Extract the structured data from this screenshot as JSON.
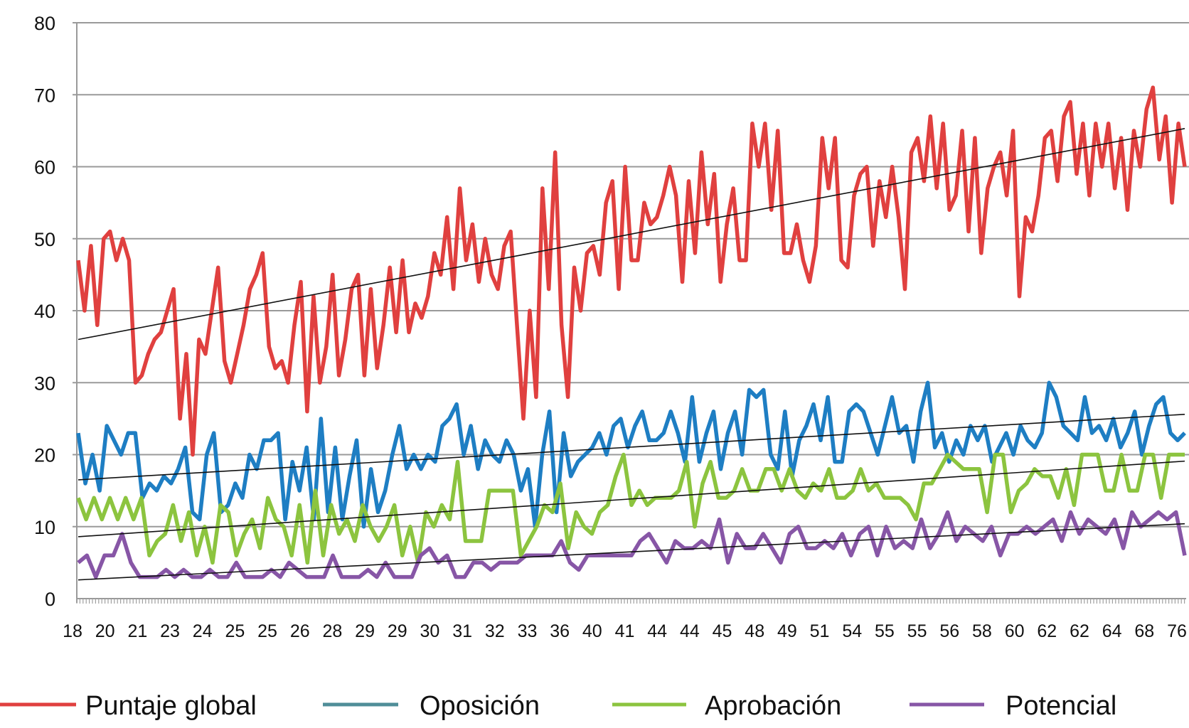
{
  "chart_data": {
    "type": "line",
    "title": "",
    "xlabel": "",
    "ylabel": "",
    "ylim": [
      0,
      80
    ],
    "yticks": [
      0,
      10,
      20,
      30,
      40,
      50,
      60,
      70,
      80
    ],
    "grid": true,
    "legend_position": "bottom",
    "x_tick_labels": [
      "18",
      "20",
      "21",
      "23",
      "24",
      "25",
      "25",
      "26",
      "28",
      "29",
      "29",
      "30",
      "31",
      "32",
      "33",
      "36",
      "40",
      "41",
      "44",
      "44",
      "45",
      "48",
      "49",
      "51",
      "54",
      "55",
      "55",
      "56",
      "58",
      "60",
      "62",
      "62",
      "64",
      "68",
      "76"
    ],
    "series": [
      {
        "name": "Puntaje global",
        "color": "#E0403F",
        "trend": [
          36,
          65.3
        ],
        "values": [
          47,
          40,
          49,
          38,
          50,
          51,
          47,
          50,
          47,
          30,
          31,
          34,
          36,
          37,
          40,
          43,
          25,
          34,
          20,
          36,
          34,
          40,
          46,
          33,
          30,
          34,
          38,
          43,
          45,
          48,
          35,
          32,
          33,
          30,
          38,
          44,
          26,
          42,
          30,
          35,
          45,
          31,
          36,
          43,
          45,
          31,
          43,
          32,
          38,
          46,
          37,
          47,
          37,
          41,
          39,
          42,
          48,
          45,
          53,
          43,
          57,
          47,
          52,
          44,
          50,
          45,
          43,
          49,
          51,
          38,
          25,
          40,
          28,
          57,
          43,
          62,
          38,
          28,
          46,
          40,
          48,
          49,
          45,
          55,
          58,
          43,
          60,
          47,
          47,
          55,
          52,
          53,
          56,
          60,
          56,
          44,
          58,
          48,
          62,
          52,
          59,
          44,
          52,
          57,
          47,
          47,
          66,
          60,
          66,
          54,
          65,
          48,
          48,
          52,
          47,
          44,
          49,
          64,
          57,
          64,
          47,
          46,
          56,
          59,
          60,
          49,
          58,
          53,
          60,
          53,
          43,
          62,
          64,
          58,
          67,
          57,
          66,
          54,
          56,
          65,
          51,
          64,
          48,
          57,
          60,
          62,
          56,
          65,
          42,
          53,
          51,
          56,
          64,
          65,
          58,
          67,
          69,
          59,
          66,
          56,
          66,
          60,
          66,
          57,
          64,
          54,
          65,
          60,
          68,
          71,
          61,
          67,
          55,
          66,
          60
        ]
      },
      {
        "name": "Oposición",
        "color": "#1E7EC3",
        "legend_color": "#4F8E98",
        "trend": [
          16.5,
          25.6
        ],
        "values": [
          23,
          16,
          20,
          15,
          24,
          22,
          20,
          23,
          23,
          14,
          16,
          15,
          17,
          16,
          18,
          21,
          12,
          11,
          20,
          23,
          12,
          13,
          16,
          14,
          20,
          18,
          22,
          22,
          23,
          11,
          19,
          15,
          21,
          11,
          25,
          12,
          21,
          11,
          17,
          22,
          10,
          18,
          12,
          15,
          20,
          24,
          18,
          20,
          18,
          20,
          19,
          24,
          25,
          27,
          20,
          24,
          18,
          22,
          20,
          19,
          22,
          20,
          15,
          18,
          10,
          20,
          26,
          12,
          23,
          17,
          19,
          20,
          21,
          23,
          20,
          24,
          25,
          21,
          24,
          26,
          22,
          22,
          23,
          26,
          23,
          19,
          28,
          19,
          23,
          26,
          18,
          23,
          26,
          20,
          29,
          28,
          29,
          20,
          18,
          26,
          17,
          22,
          24,
          27,
          22,
          28,
          19,
          19,
          26,
          27,
          26,
          23,
          20,
          24,
          28,
          23,
          24,
          19,
          26,
          30,
          21,
          23,
          19,
          22,
          20,
          24,
          22,
          24,
          19,
          21,
          23,
          20,
          24,
          22,
          21,
          23,
          30,
          28,
          24,
          23,
          22,
          28,
          23,
          24,
          22,
          25,
          21,
          23,
          26,
          20,
          24,
          27,
          28,
          23,
          22,
          23
        ]
      },
      {
        "name": "Aprobación",
        "color": "#8CC43F",
        "trend": [
          8.6,
          19.1
        ],
        "values": [
          14,
          11,
          14,
          11,
          14,
          11,
          14,
          11,
          14,
          6,
          8,
          9,
          13,
          8,
          12,
          6,
          10,
          5,
          13,
          12,
          6,
          9,
          11,
          7,
          14,
          11,
          10,
          6,
          13,
          5,
          15,
          6,
          13,
          9,
          11,
          8,
          13,
          10,
          8,
          10,
          13,
          6,
          10,
          5,
          12,
          10,
          13,
          11,
          19,
          8,
          8,
          8,
          15,
          15,
          15,
          15,
          6,
          8,
          10,
          13,
          12,
          16,
          7,
          12,
          10,
          9,
          12,
          13,
          17,
          20,
          13,
          15,
          13,
          14,
          14,
          14,
          15,
          19,
          10,
          16,
          19,
          14,
          14,
          15,
          18,
          15,
          15,
          18,
          18,
          15,
          18,
          15,
          14,
          16,
          15,
          18,
          14,
          14,
          15,
          18,
          15,
          16,
          14,
          14,
          14,
          13,
          11,
          16,
          16,
          18,
          20,
          19,
          18,
          18,
          18,
          12,
          20,
          20,
          12,
          15,
          16,
          18,
          17,
          17,
          14,
          18,
          13,
          20,
          20,
          20,
          15,
          15,
          20,
          15,
          15,
          20,
          20,
          14,
          20,
          20,
          20
        ]
      },
      {
        "name": "Potencial",
        "color": "#8756A6",
        "trend": [
          2.6,
          10.4
        ],
        "values": [
          5,
          6,
          3,
          6,
          6,
          9,
          5,
          3,
          3,
          3,
          4,
          3,
          4,
          3,
          3,
          4,
          3,
          3,
          5,
          3,
          3,
          3,
          4,
          3,
          5,
          4,
          3,
          3,
          3,
          6,
          3,
          3,
          3,
          4,
          3,
          5,
          3,
          3,
          3,
          6,
          7,
          5,
          6,
          3,
          3,
          5,
          5,
          4,
          5,
          5,
          5,
          6,
          6,
          6,
          6,
          8,
          5,
          4,
          6,
          6,
          6,
          6,
          6,
          6,
          8,
          9,
          7,
          5,
          8,
          7,
          7,
          8,
          7,
          11,
          5,
          9,
          7,
          7,
          9,
          7,
          5,
          9,
          10,
          7,
          7,
          8,
          7,
          9,
          6,
          9,
          10,
          6,
          10,
          7,
          8,
          7,
          11,
          7,
          9,
          12,
          8,
          10,
          9,
          8,
          10,
          6,
          9,
          9,
          10,
          9,
          10,
          11,
          8,
          12,
          9,
          11,
          10,
          9,
          11,
          7,
          12,
          10,
          11,
          12,
          11,
          12,
          6
        ]
      }
    ]
  }
}
